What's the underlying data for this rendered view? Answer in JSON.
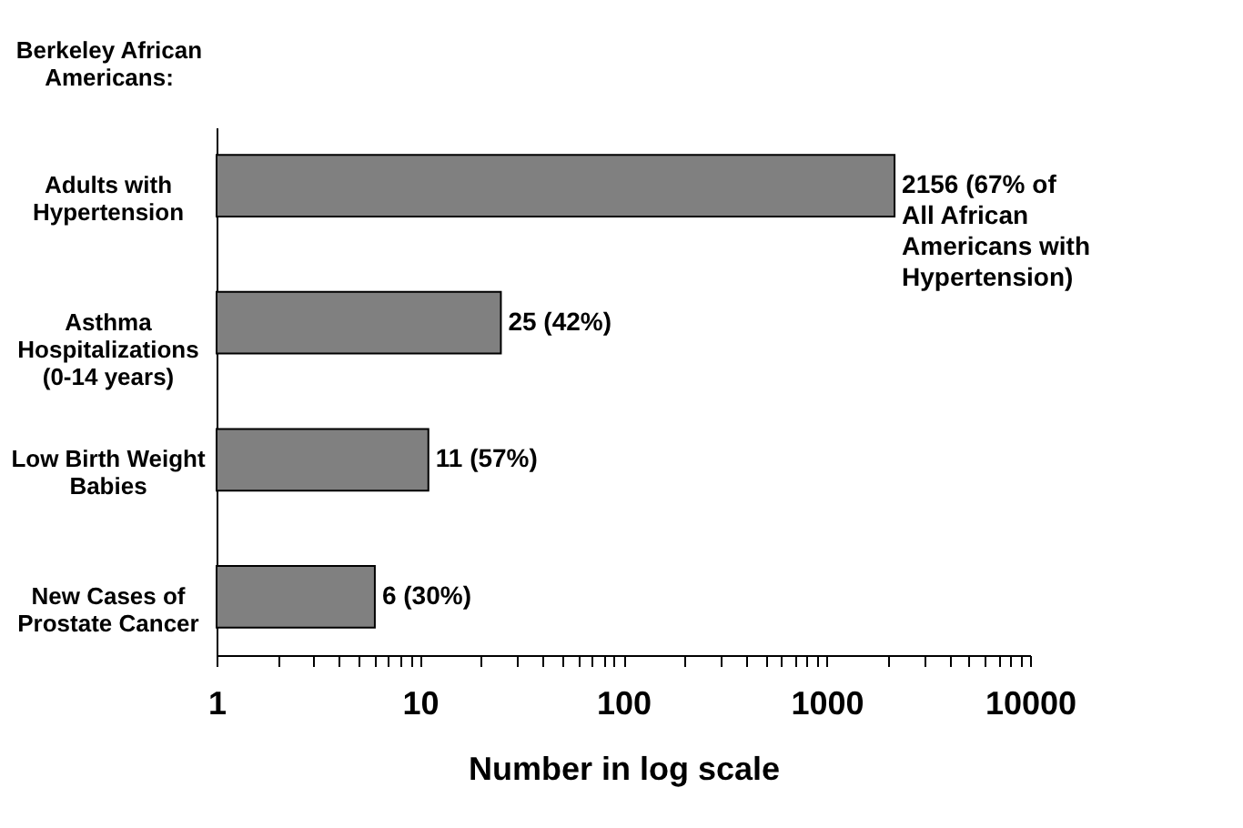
{
  "chart_data": {
    "type": "bar",
    "orientation": "horizontal",
    "xlabel": "Number in log scale",
    "log": "x",
    "grid": false,
    "annotations": [
      "Berkeley African Americans:"
    ],
    "categories": [
      "Adults with Hypertension",
      "Asthma Hospitalizations (0-14 years)",
      "Low Birth Weight Babies",
      "New Cases of Prostate Cancer"
    ],
    "values": [
      2156,
      25,
      11,
      6
    ],
    "value_labels": [
      "2156 (67% of All African Americans with Hypertension)",
      "25 (42%)",
      "11 (57%)",
      "6 (30%)"
    ],
    "color": "#808080",
    "xlim": [
      1,
      10000
    ],
    "xticks": [
      1,
      {
        "value": 2,
        "label": null
      },
      {
        "value": 3,
        "label": null
      },
      {
        "value": 4,
        "label": null
      },
      {
        "value": 5,
        "label": null
      },
      {
        "value": 6,
        "label": null
      },
      {
        "value": 7,
        "label": null
      },
      {
        "value": 8,
        "label": null
      },
      {
        "value": 9,
        "label": null
      },
      10,
      {
        "value": 20,
        "label": null
      },
      {
        "value": 30,
        "label": null
      },
      {
        "value": 40,
        "label": null
      },
      {
        "value": 50,
        "label": null
      },
      {
        "value": 60,
        "label": null
      },
      {
        "value": 70,
        "label": null
      },
      {
        "value": 80,
        "label": null
      },
      {
        "value": 90,
        "label": null
      },
      100,
      {
        "value": 200,
        "label": null
      },
      {
        "value": 300,
        "label": null
      },
      {
        "value": 400,
        "label": null
      },
      {
        "value": 500,
        "label": null
      },
      {
        "value": 600,
        "label": null
      },
      {
        "value": 700,
        "label": null
      },
      {
        "value": 800,
        "label": null
      },
      {
        "value": 900,
        "label": null
      },
      1000,
      {
        "value": 2000,
        "label": null
      },
      {
        "value": 3000,
        "label": null
      },
      {
        "value": 4000,
        "label": null
      },
      {
        "value": 5000,
        "label": null
      },
      {
        "value": 6000,
        "label": null
      },
      {
        "value": 7000,
        "label": null
      },
      {
        "value": 8000,
        "label": null
      },
      {
        "value": 9000,
        "label": null
      },
      10000
    ]
  }
}
